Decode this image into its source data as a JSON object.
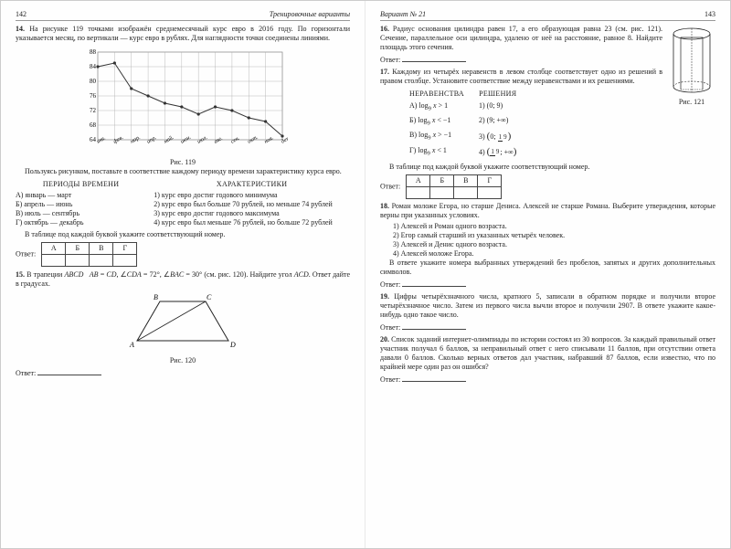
{
  "left": {
    "page_num": "142",
    "header": "Тренировочные варианты",
    "t14": {
      "num": "14.",
      "text": "На рисунке 119 точками изображён среднемесячный курс евро в 2016 году. По горизонтали указывается месяц, по вертикали — курс евро в рублях. Для наглядности точки соединены линиями.",
      "chart": {
        "y_ticks": [
          64,
          68,
          72,
          76,
          80,
          84,
          88
        ],
        "x_labels": [
          "янв.",
          "фев.",
          "мар.",
          "апр.",
          "май.",
          "июн.",
          "июл.",
          "авг.",
          "сен.",
          "окт.",
          "ноя.",
          "дек."
        ],
        "values": [
          84,
          85,
          78,
          76,
          74,
          73,
          71,
          73,
          72,
          70,
          69,
          65
        ],
        "line_color": "#333",
        "point_color": "#333",
        "grid_color": "#aaa"
      },
      "caption": "Рис. 119",
      "instr": "Пользуясь рисунком, поставьте в соответствие каждому периоду времени характеристику курса евро.",
      "periods_title": "ПЕРИОДЫ ВРЕМЕНИ",
      "periods": [
        "А) январь — март",
        "Б) апрель — июнь",
        "В) июль — сентябрь",
        "Г) октябрь — декабрь"
      ],
      "chars_title": "ХАРАКТЕРИСТИКИ",
      "chars": [
        "1) курс евро достиг годового минимума",
        "2) курс евро был больше 70 рублей, но меньше 74 рублей",
        "3) курс евро достиг годового максимума",
        "4) курс евро был меньше 76 рублей, но больше 72 рублей"
      ],
      "table_instr": "В таблице под каждой буквой укажите соответствующий номер.",
      "answer_label": "Ответ:",
      "table_headers": [
        "А",
        "Б",
        "В",
        "Г"
      ]
    },
    "t15": {
      "num": "15.",
      "text": "В трапеции ABCD   AB = CD, ∠CDA = 72°, ∠BAC = 30° (см. рис. 120). Найдите угол ACD. Ответ дайте в градусах.",
      "caption": "Рис. 120",
      "answer_label": "Ответ:"
    }
  },
  "right": {
    "page_num": "143",
    "header": "Вариант № 21",
    "t16": {
      "num": "16.",
      "text": "Радиус основания цилиндра равен 17, а его образующая равна 23 (см. рис. 121). Сечение, параллельное оси цилиндра, удалено от неё на расстояние, равное 8. Найдите площадь этого сечения.",
      "caption": "Рис. 121",
      "answer_label": "Ответ:"
    },
    "t17": {
      "num": "17.",
      "text": "Каждому из четырёх неравенств в левом столбце соответствует одно из решений в правом столбце. Установите соответствие между неравенствами и их решениями.",
      "left_title": "НЕРАВЕНСТВА",
      "right_title": "РЕШЕНИЯ",
      "ineq": [
        "А) log₉ x > 1",
        "Б) log₉ x < −1",
        "В) log₉ x > −1",
        "Г) log₉ x < 1"
      ],
      "sol": [
        "1) (0; 9)",
        "2) (9; +∞)",
        "3) (0; 1/9)",
        "4) (1/9; +∞)"
      ],
      "table_instr": "В таблице под каждой буквой укажите соответствующий номер.",
      "answer_label": "Ответ:",
      "table_headers": [
        "А",
        "Б",
        "В",
        "Г"
      ]
    },
    "t18": {
      "num": "18.",
      "text": "Роман моложе Егора, но старше Дениса. Алексей не старше Романа. Выберите утверждения, которые верны при указанных условиях.",
      "opts": [
        "1) Алексей и Роман одного возраста.",
        "2) Егор самый старший из указанных четырёх человек.",
        "3) Алексей и Денис одного возраста.",
        "4) Алексей моложе Егора."
      ],
      "tail": "В ответе укажите номера выбранных утверждений без пробелов, запятых и других дополнительных символов.",
      "answer_label": "Ответ:"
    },
    "t19": {
      "num": "19.",
      "text": "Цифры четырёхзначного числа, кратного 5, записали в обратном порядке и получили второе четырёхзначное число. Затем из первого числа вычли второе и получили 2907. В ответе укажите какое-нибудь одно такое число.",
      "answer_label": "Ответ:"
    },
    "t20": {
      "num": "20.",
      "text": "Список заданий интернет-олимпиады по истории состоял из 30 вопросов. За каждый правильный ответ участник получал 6 баллов, за неправильный ответ с него списывали 11 баллов, при отсутствии ответа давали 0 баллов. Сколько верных ответов дал участник, набравший 87 баллов, если известно, что по крайней мере один раз он ошибся?",
      "answer_label": "Ответ:"
    }
  }
}
